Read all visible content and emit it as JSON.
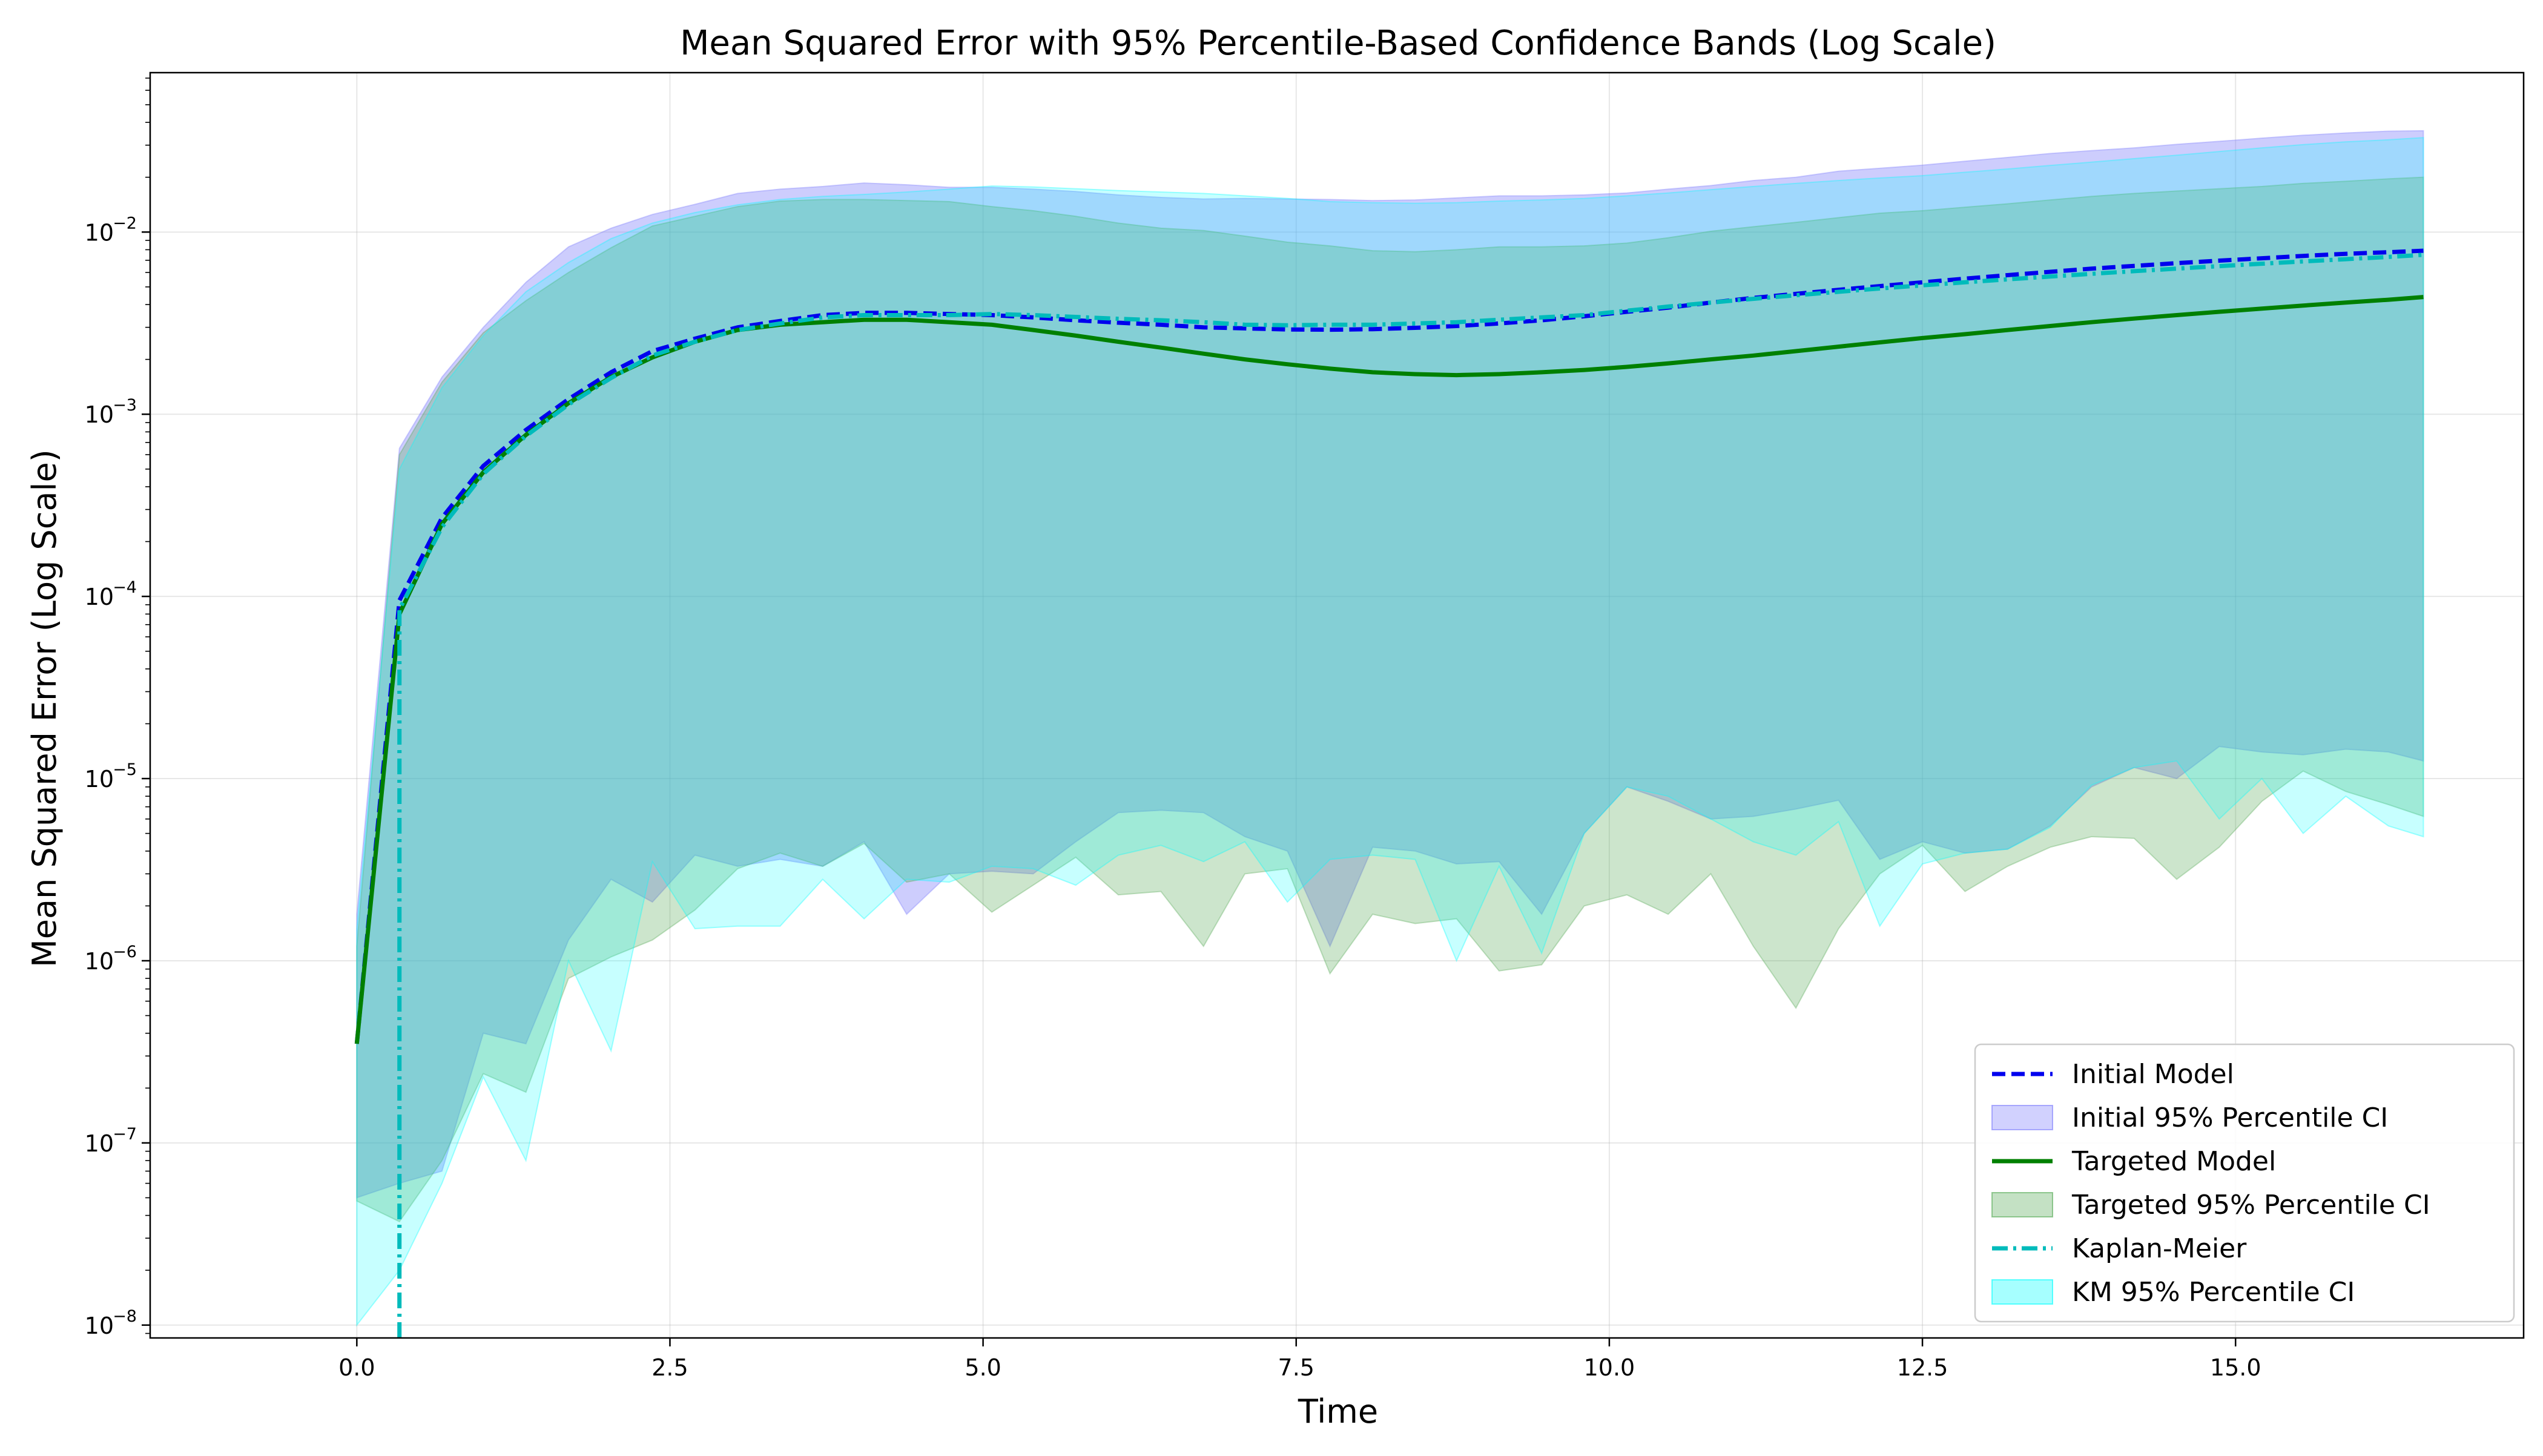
{
  "chart_data": {
    "type": "area",
    "title": "Mean Squared Error with 95% Percentile-Based Confidence Bands (Log Scale)",
    "xlabel": "Time",
    "ylabel": "Mean Squared Error (Log Scale)",
    "x_scale": "linear",
    "y_scale": "log",
    "xlim": [
      -1.65,
      17.3
    ],
    "ylim": [
      8.5e-09,
      0.075
    ],
    "grid": true,
    "legend_position": "lower-right",
    "x_ticks": [
      0.0,
      2.5,
      5.0,
      7.5,
      10.0,
      12.5,
      15.0
    ],
    "x_tick_labels": [
      "0.0",
      "2.5",
      "5.0",
      "7.5",
      "10.0",
      "12.5",
      "15.0"
    ],
    "y_ticks": [
      1e-08,
      1e-07,
      1e-06,
      1e-05,
      0.0001,
      0.001,
      0.01
    ],
    "y_tick_labels": [
      {
        "base": "10",
        "exp": "−8"
      },
      {
        "base": "10",
        "exp": "−7"
      },
      {
        "base": "10",
        "exp": "−6"
      },
      {
        "base": "10",
        "exp": "−5"
      },
      {
        "base": "10",
        "exp": "−4"
      },
      {
        "base": "10",
        "exp": "−3"
      },
      {
        "base": "10",
        "exp": "−2"
      }
    ],
    "bands": [
      {
        "name": "Initial 95% Percentile CI",
        "color": "#7b7bfb",
        "opacity": 0.38,
        "x": [
          0,
          0.34,
          0.68,
          1.01,
          1.35,
          1.69,
          2.03,
          2.36,
          2.7,
          3.04,
          3.38,
          3.72,
          4.05,
          4.39,
          4.73,
          5.07,
          5.4,
          5.74,
          6.08,
          6.42,
          6.76,
          7.09,
          7.43,
          7.77,
          8.11,
          8.45,
          8.78,
          9.12,
          9.46,
          9.8,
          10.14,
          10.47,
          10.81,
          11.15,
          11.49,
          11.83,
          12.16,
          12.5,
          12.84,
          13.18,
          13.52,
          13.85,
          14.19,
          14.53,
          14.87,
          15.21,
          15.54,
          15.88,
          16.22,
          16.5
        ],
        "lower": [
          5e-08,
          6e-08,
          7e-08,
          4e-07,
          3.5e-07,
          1.3e-06,
          2.8e-06,
          2.1e-06,
          3.8e-06,
          3.3e-06,
          3.6e-06,
          3.3e-06,
          4.5e-06,
          1.8e-06,
          3e-06,
          3.1e-06,
          3e-06,
          4.5e-06,
          6.5e-06,
          6.7e-06,
          6.5e-06,
          4.8e-06,
          4e-06,
          1.2e-06,
          4.2e-06,
          4e-06,
          3.4e-06,
          3.5e-06,
          1.8e-06,
          5e-06,
          9e-06,
          7.5e-06,
          6e-06,
          6.2e-06,
          6.8e-06,
          7.6e-06,
          3.6e-06,
          4.5e-06,
          3.9e-06,
          4.1e-06,
          5.5e-06,
          9e-06,
          1.15e-05,
          1e-05,
          1.5e-05,
          1.4e-05,
          1.35e-05,
          1.45e-05,
          1.4e-05,
          1.25e-05
        ],
        "upper": [
          1.8e-06,
          0.00065,
          0.0016,
          0.003,
          0.0053,
          0.0083,
          0.0105,
          0.0125,
          0.0142,
          0.0163,
          0.0172,
          0.0178,
          0.0186,
          0.0182,
          0.0176,
          0.0176,
          0.0172,
          0.0167,
          0.016,
          0.0155,
          0.0152,
          0.0153,
          0.0152,
          0.0151,
          0.0149,
          0.015,
          0.0154,
          0.0158,
          0.0158,
          0.016,
          0.0164,
          0.0172,
          0.018,
          0.0192,
          0.02,
          0.0216,
          0.0224,
          0.0233,
          0.0245,
          0.0257,
          0.027,
          0.028,
          0.029,
          0.0303,
          0.0315,
          0.0328,
          0.034,
          0.035,
          0.0358,
          0.036
        ]
      },
      {
        "name": "Targeted 95% Percentile CI",
        "color": "#55aa55",
        "opacity": 0.3,
        "x": [
          0,
          0.34,
          0.68,
          1.01,
          1.35,
          1.69,
          2.03,
          2.36,
          2.7,
          3.04,
          3.38,
          3.72,
          4.05,
          4.39,
          4.73,
          5.07,
          5.4,
          5.74,
          6.08,
          6.42,
          6.76,
          7.09,
          7.43,
          7.77,
          8.11,
          8.45,
          8.78,
          9.12,
          9.46,
          9.8,
          10.14,
          10.47,
          10.81,
          11.15,
          11.49,
          11.83,
          12.16,
          12.5,
          12.84,
          13.18,
          13.52,
          13.85,
          14.19,
          14.53,
          14.87,
          15.21,
          15.54,
          15.88,
          16.22,
          16.5
        ],
        "lower": [
          4.8e-08,
          3.7e-08,
          8e-08,
          2.4e-07,
          1.9e-07,
          8e-07,
          1.05e-06,
          1.3e-06,
          1.9e-06,
          3.2e-06,
          3.9e-06,
          3.3e-06,
          4.4e-06,
          2.7e-06,
          3e-06,
          1.85e-06,
          2.6e-06,
          3.7e-06,
          2.3e-06,
          2.4e-06,
          1.2e-06,
          3e-06,
          3.2e-06,
          8.5e-07,
          1.8e-06,
          1.6e-06,
          1.7e-06,
          8.8e-07,
          9.5e-07,
          2e-06,
          2.3e-06,
          1.8e-06,
          3e-06,
          1.2e-06,
          5.5e-07,
          1.5e-06,
          3e-06,
          4.3e-06,
          2.4e-06,
          3.3e-06,
          4.2e-06,
          4.8e-06,
          4.7e-06,
          2.8e-06,
          4.2e-06,
          7.5e-06,
          1.1e-05,
          8.5e-06,
          7.2e-06,
          6.2e-06
        ],
        "upper": [
          1.2e-06,
          0.0006,
          0.0015,
          0.0028,
          0.0042,
          0.006,
          0.0082,
          0.0108,
          0.0122,
          0.0138,
          0.0148,
          0.0151,
          0.0151,
          0.0149,
          0.0147,
          0.0138,
          0.0131,
          0.0122,
          0.0112,
          0.0105,
          0.0102,
          0.0095,
          0.0088,
          0.0084,
          0.0079,
          0.0078,
          0.008,
          0.0083,
          0.0083,
          0.0084,
          0.0087,
          0.0093,
          0.0101,
          0.0107,
          0.0113,
          0.012,
          0.0127,
          0.0131,
          0.0137,
          0.0143,
          0.015,
          0.0157,
          0.0163,
          0.0168,
          0.0173,
          0.0178,
          0.0185,
          0.019,
          0.0196,
          0.02
        ]
      },
      {
        "name": "KM 95% Percentile CI",
        "color": "#00ffff",
        "opacity": 0.22,
        "x": [
          0,
          0.34,
          0.68,
          1.01,
          1.35,
          1.69,
          2.03,
          2.36,
          2.7,
          3.04,
          3.38,
          3.72,
          4.05,
          4.39,
          4.73,
          5.07,
          5.4,
          5.74,
          6.08,
          6.42,
          6.76,
          7.09,
          7.43,
          7.77,
          8.11,
          8.45,
          8.78,
          9.12,
          9.46,
          9.8,
          10.14,
          10.47,
          10.81,
          11.15,
          11.49,
          11.83,
          12.16,
          12.5,
          12.84,
          13.18,
          13.52,
          13.85,
          14.19,
          14.53,
          14.87,
          15.21,
          15.54,
          15.88,
          16.22,
          16.5
        ],
        "lower": [
          1e-08,
          2e-08,
          6e-08,
          2.3e-07,
          8e-08,
          1e-06,
          3.2e-07,
          3.5e-06,
          1.5e-06,
          1.55e-06,
          1.55e-06,
          2.8e-06,
          1.7e-06,
          2.8e-06,
          2.7e-06,
          3.3e-06,
          3.2e-06,
          2.6e-06,
          3.8e-06,
          4.3e-06,
          3.5e-06,
          4.5e-06,
          2.1e-06,
          3.6e-06,
          3.8e-06,
          3.6e-06,
          1e-06,
          3.3e-06,
          1.1e-06,
          5e-06,
          9e-06,
          8e-06,
          6e-06,
          4.5e-06,
          3.8e-06,
          5.8e-06,
          1.55e-06,
          3.4e-06,
          3.9e-06,
          4.1e-06,
          5.4e-06,
          9.2e-06,
          1.15e-05,
          1.25e-05,
          6e-06,
          1e-05,
          5e-06,
          8e-06,
          5.5e-06,
          4.8e-06
        ],
        "upper": [
          1.5e-06,
          0.0005,
          0.0014,
          0.0027,
          0.0047,
          0.0068,
          0.0092,
          0.0112,
          0.0128,
          0.0141,
          0.0151,
          0.0157,
          0.0161,
          0.0166,
          0.0172,
          0.0179,
          0.0177,
          0.0173,
          0.0169,
          0.0166,
          0.0163,
          0.0158,
          0.0153,
          0.0147,
          0.0145,
          0.0144,
          0.0145,
          0.0148,
          0.015,
          0.0153,
          0.0158,
          0.0164,
          0.0171,
          0.0178,
          0.0185,
          0.0192,
          0.0198,
          0.0204,
          0.0213,
          0.0222,
          0.0232,
          0.0242,
          0.0253,
          0.0264,
          0.0277,
          0.029,
          0.0302,
          0.0313,
          0.0321,
          0.033
        ]
      }
    ],
    "series": [
      {
        "name": "Initial Model",
        "color": "#0000ee",
        "style": "dashed",
        "x": [
          0,
          0.34,
          0.68,
          1.01,
          1.35,
          1.69,
          2.03,
          2.36,
          2.7,
          3.04,
          3.38,
          3.72,
          4.05,
          4.39,
          4.73,
          5.07,
          5.4,
          5.74,
          6.08,
          6.42,
          6.76,
          7.09,
          7.43,
          7.77,
          8.11,
          8.45,
          8.78,
          9.12,
          9.46,
          9.8,
          10.14,
          10.47,
          10.81,
          11.15,
          11.49,
          11.83,
          12.16,
          12.5,
          12.84,
          13.18,
          13.52,
          13.85,
          14.19,
          14.53,
          14.87,
          15.21,
          15.54,
          15.88,
          16.22,
          16.5
        ],
        "values": [
          3.5e-07,
          9.5e-05,
          0.00027,
          0.00052,
          0.00082,
          0.00121,
          0.0017,
          0.00222,
          0.0026,
          0.003,
          0.00325,
          0.0035,
          0.0036,
          0.0036,
          0.00355,
          0.0035,
          0.0034,
          0.00328,
          0.00318,
          0.0031,
          0.003,
          0.00296,
          0.00292,
          0.00291,
          0.00293,
          0.00298,
          0.00305,
          0.00315,
          0.00328,
          0.00345,
          0.00365,
          0.00385,
          0.0041,
          0.00435,
          0.00458,
          0.00482,
          0.00505,
          0.0053,
          0.00555,
          0.0058,
          0.00605,
          0.0063,
          0.00652,
          0.00675,
          0.00697,
          0.00718,
          0.0074,
          0.0076,
          0.00775,
          0.0079
        ]
      },
      {
        "name": "Targeted Model",
        "color": "#008000",
        "style": "solid",
        "x": [
          0,
          0.34,
          0.68,
          1.01,
          1.35,
          1.69,
          2.03,
          2.36,
          2.7,
          3.04,
          3.38,
          3.72,
          4.05,
          4.39,
          4.73,
          5.07,
          5.4,
          5.74,
          6.08,
          6.42,
          6.76,
          7.09,
          7.43,
          7.77,
          8.11,
          8.45,
          8.78,
          9.12,
          9.46,
          9.8,
          10.14,
          10.47,
          10.81,
          11.15,
          11.49,
          11.83,
          12.16,
          12.5,
          12.84,
          13.18,
          13.52,
          13.85,
          14.19,
          14.53,
          14.87,
          15.21,
          15.54,
          15.88,
          16.22,
          16.5
        ],
        "values": [
          3.5e-07,
          8e-05,
          0.00025,
          0.00048,
          0.00077,
          0.00115,
          0.0016,
          0.00205,
          0.0025,
          0.0029,
          0.0031,
          0.0032,
          0.0033,
          0.0033,
          0.0032,
          0.0031,
          0.0029,
          0.0027,
          0.0025,
          0.00232,
          0.00215,
          0.002,
          0.00188,
          0.00178,
          0.0017,
          0.00166,
          0.00164,
          0.00166,
          0.0017,
          0.00175,
          0.00182,
          0.0019,
          0.002,
          0.0021,
          0.00222,
          0.00235,
          0.00248,
          0.00262,
          0.00275,
          0.0029,
          0.00305,
          0.0032,
          0.00335,
          0.0035,
          0.00365,
          0.0038,
          0.00395,
          0.0041,
          0.00425,
          0.0044
        ]
      },
      {
        "name": "Kaplan-Meier",
        "color": "#00bbbb",
        "style": "dashdot",
        "x": [
          0.34,
          0.34,
          0.68,
          1.01,
          1.35,
          1.69,
          2.03,
          2.36,
          2.7,
          3.04,
          3.38,
          3.72,
          4.05,
          4.39,
          4.73,
          5.07,
          5.4,
          5.74,
          6.08,
          6.42,
          6.76,
          7.09,
          7.43,
          7.77,
          8.11,
          8.45,
          8.78,
          9.12,
          9.46,
          9.8,
          10.14,
          10.47,
          10.81,
          11.15,
          11.49,
          11.83,
          12.16,
          12.5,
          12.84,
          13.18,
          13.52,
          13.85,
          14.19,
          14.53,
          14.87,
          15.21,
          15.54,
          15.88,
          16.22,
          16.5
        ],
        "values": [
          8.5e-09,
          8.5e-05,
          0.00024,
          0.00047,
          0.00076,
          0.00113,
          0.00158,
          0.0021,
          0.0025,
          0.0029,
          0.00315,
          0.0034,
          0.0035,
          0.0035,
          0.0035,
          0.00355,
          0.0035,
          0.00342,
          0.00334,
          0.00328,
          0.0032,
          0.0031,
          0.00308,
          0.0031,
          0.0031,
          0.00315,
          0.0032,
          0.0033,
          0.0034,
          0.0035,
          0.0037,
          0.0039,
          0.0041,
          0.0043,
          0.0045,
          0.0047,
          0.0049,
          0.0051,
          0.0053,
          0.0055,
          0.0057,
          0.0059,
          0.0061,
          0.0063,
          0.0065,
          0.0067,
          0.0069,
          0.0071,
          0.0073,
          0.0075
        ]
      }
    ],
    "legend": [
      {
        "label": "Initial Model",
        "kind": "line",
        "color": "#0000ee",
        "style": "dashed"
      },
      {
        "label": "Initial 95% Percentile CI",
        "kind": "patch",
        "color": "#7b7bfb"
      },
      {
        "label": "Targeted Model",
        "kind": "line",
        "color": "#008000",
        "style": "solid"
      },
      {
        "label": "Targeted 95% Percentile CI",
        "kind": "patch",
        "color": "#55aa55"
      },
      {
        "label": "Kaplan-Meier",
        "kind": "line",
        "color": "#00bbbb",
        "style": "dashdot"
      },
      {
        "label": "KM 95% Percentile CI",
        "kind": "patch",
        "color": "#00ffff"
      }
    ]
  }
}
